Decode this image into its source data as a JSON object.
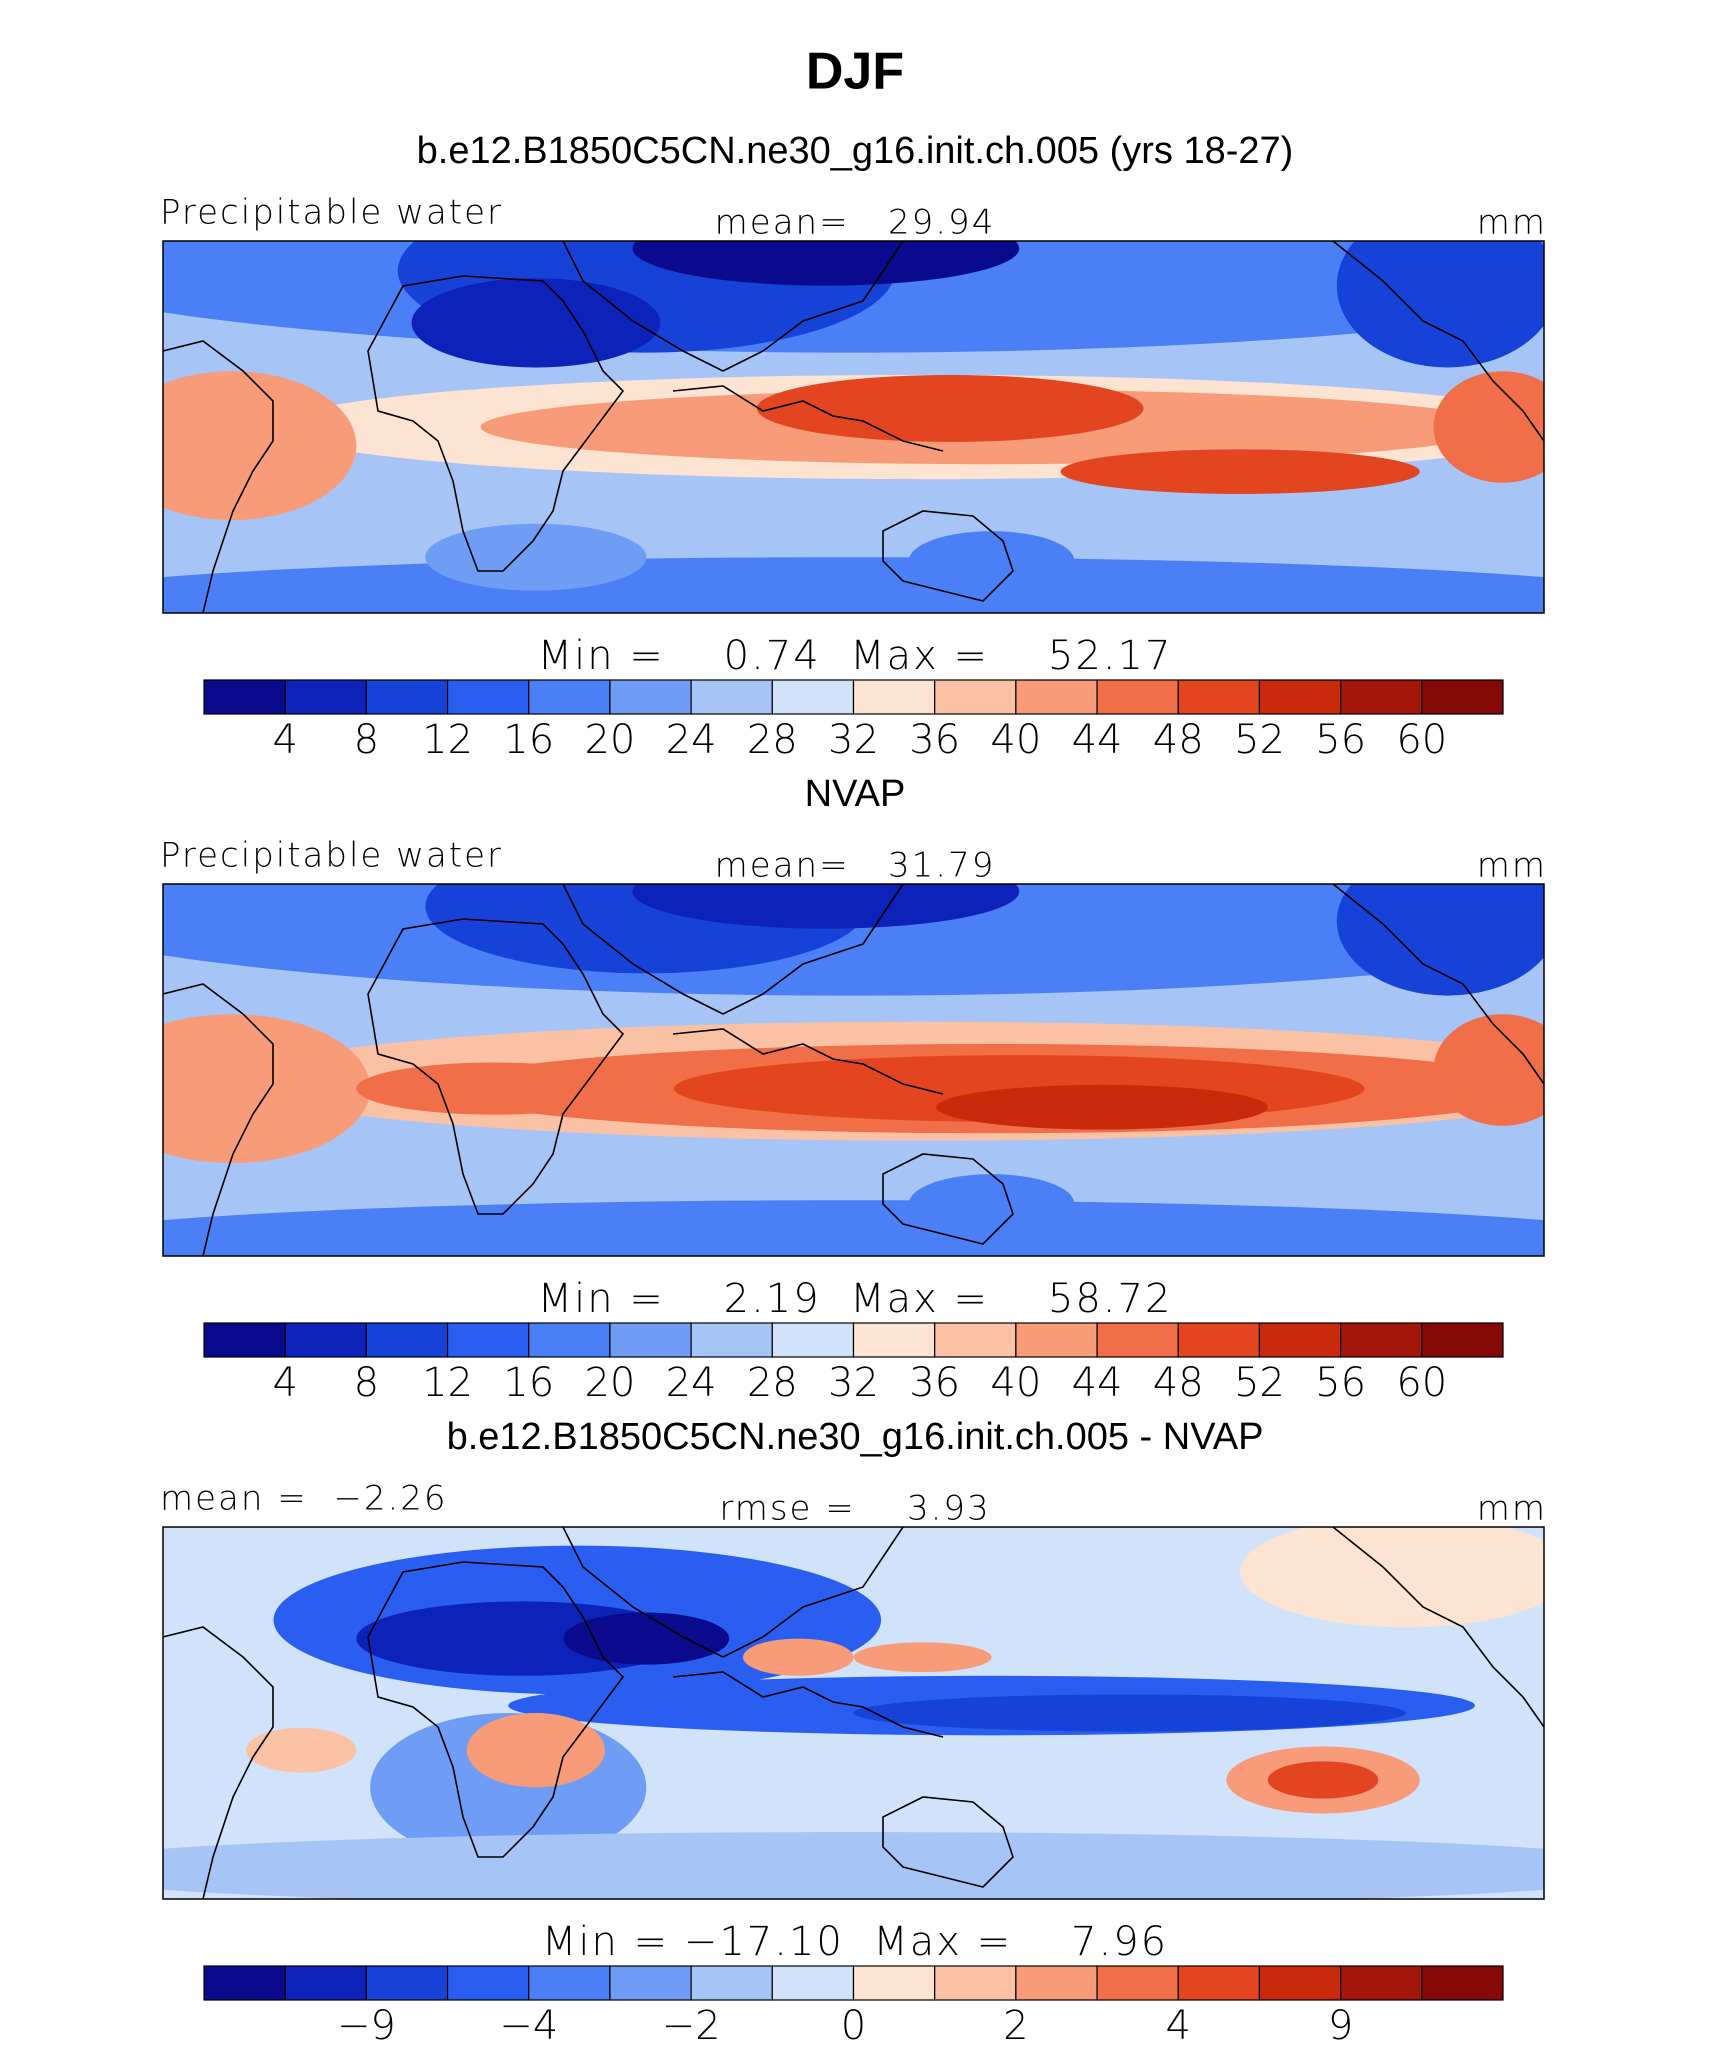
{
  "title": "DJF",
  "panels": [
    {
      "heading": "b.e12.B1850C5CN.ne30_g16.init.ch.005 (yrs 18-27)",
      "left_label": "Precipitable water",
      "center_label": "mean=   29.94",
      "units": "mm",
      "min_max": "Min =    0.74  Max =    52.17",
      "colorbar": {
        "colors": [
          "#0a0a8c",
          "#0c22b8",
          "#1642d8",
          "#2a5ef0",
          "#4a7ff5",
          "#6f9cf5",
          "#a7c4f7",
          "#d1e2fb",
          "#fde4d2",
          "#fbc1a4",
          "#f89b78",
          "#f06e48",
          "#e2451f",
          "#c92a0c",
          "#a5160a",
          "#850906"
        ],
        "labels": [
          "4",
          "8",
          "12",
          "16",
          "20",
          "24",
          "28",
          "32",
          "36",
          "40",
          "44",
          "48",
          "52",
          "56",
          "60"
        ]
      }
    },
    {
      "heading": "NVAP",
      "left_label": "Precipitable water",
      "center_label": "mean=   31.79",
      "units": "mm",
      "min_max": "Min =    2.19  Max =    58.72",
      "colorbar": {
        "colors": [
          "#0a0a8c",
          "#0c22b8",
          "#1642d8",
          "#2a5ef0",
          "#4a7ff5",
          "#6f9cf5",
          "#a7c4f7",
          "#d1e2fb",
          "#fde4d2",
          "#fbc1a4",
          "#f89b78",
          "#f06e48",
          "#e2451f",
          "#c92a0c",
          "#a5160a",
          "#850906"
        ],
        "labels": [
          "4",
          "8",
          "12",
          "16",
          "20",
          "24",
          "28",
          "32",
          "36",
          "40",
          "44",
          "48",
          "52",
          "56",
          "60"
        ]
      }
    },
    {
      "heading": "b.e12.B1850C5CN.ne30_g16.init.ch.005 - NVAP",
      "left_label": "mean =  −2.26",
      "center_label": "rmse =    3.93",
      "units": "mm",
      "min_max": "Min = −17.10  Max =    7.96",
      "colorbar": {
        "colors": [
          "#0a0a8c",
          "#0c22b8",
          "#1642d8",
          "#2a5ef0",
          "#4a7ff5",
          "#6f9cf5",
          "#a7c4f7",
          "#d1e2fb",
          "#fde4d2",
          "#fbc1a4",
          "#f89b78",
          "#f06e48",
          "#e2451f",
          "#c92a0c",
          "#a5160a",
          "#850906"
        ],
        "labels": [
          null,
          "−9",
          null,
          "−4",
          null,
          "−2",
          null,
          "0",
          null,
          "2",
          null,
          "4",
          null,
          "9",
          null
        ]
      }
    }
  ]
}
